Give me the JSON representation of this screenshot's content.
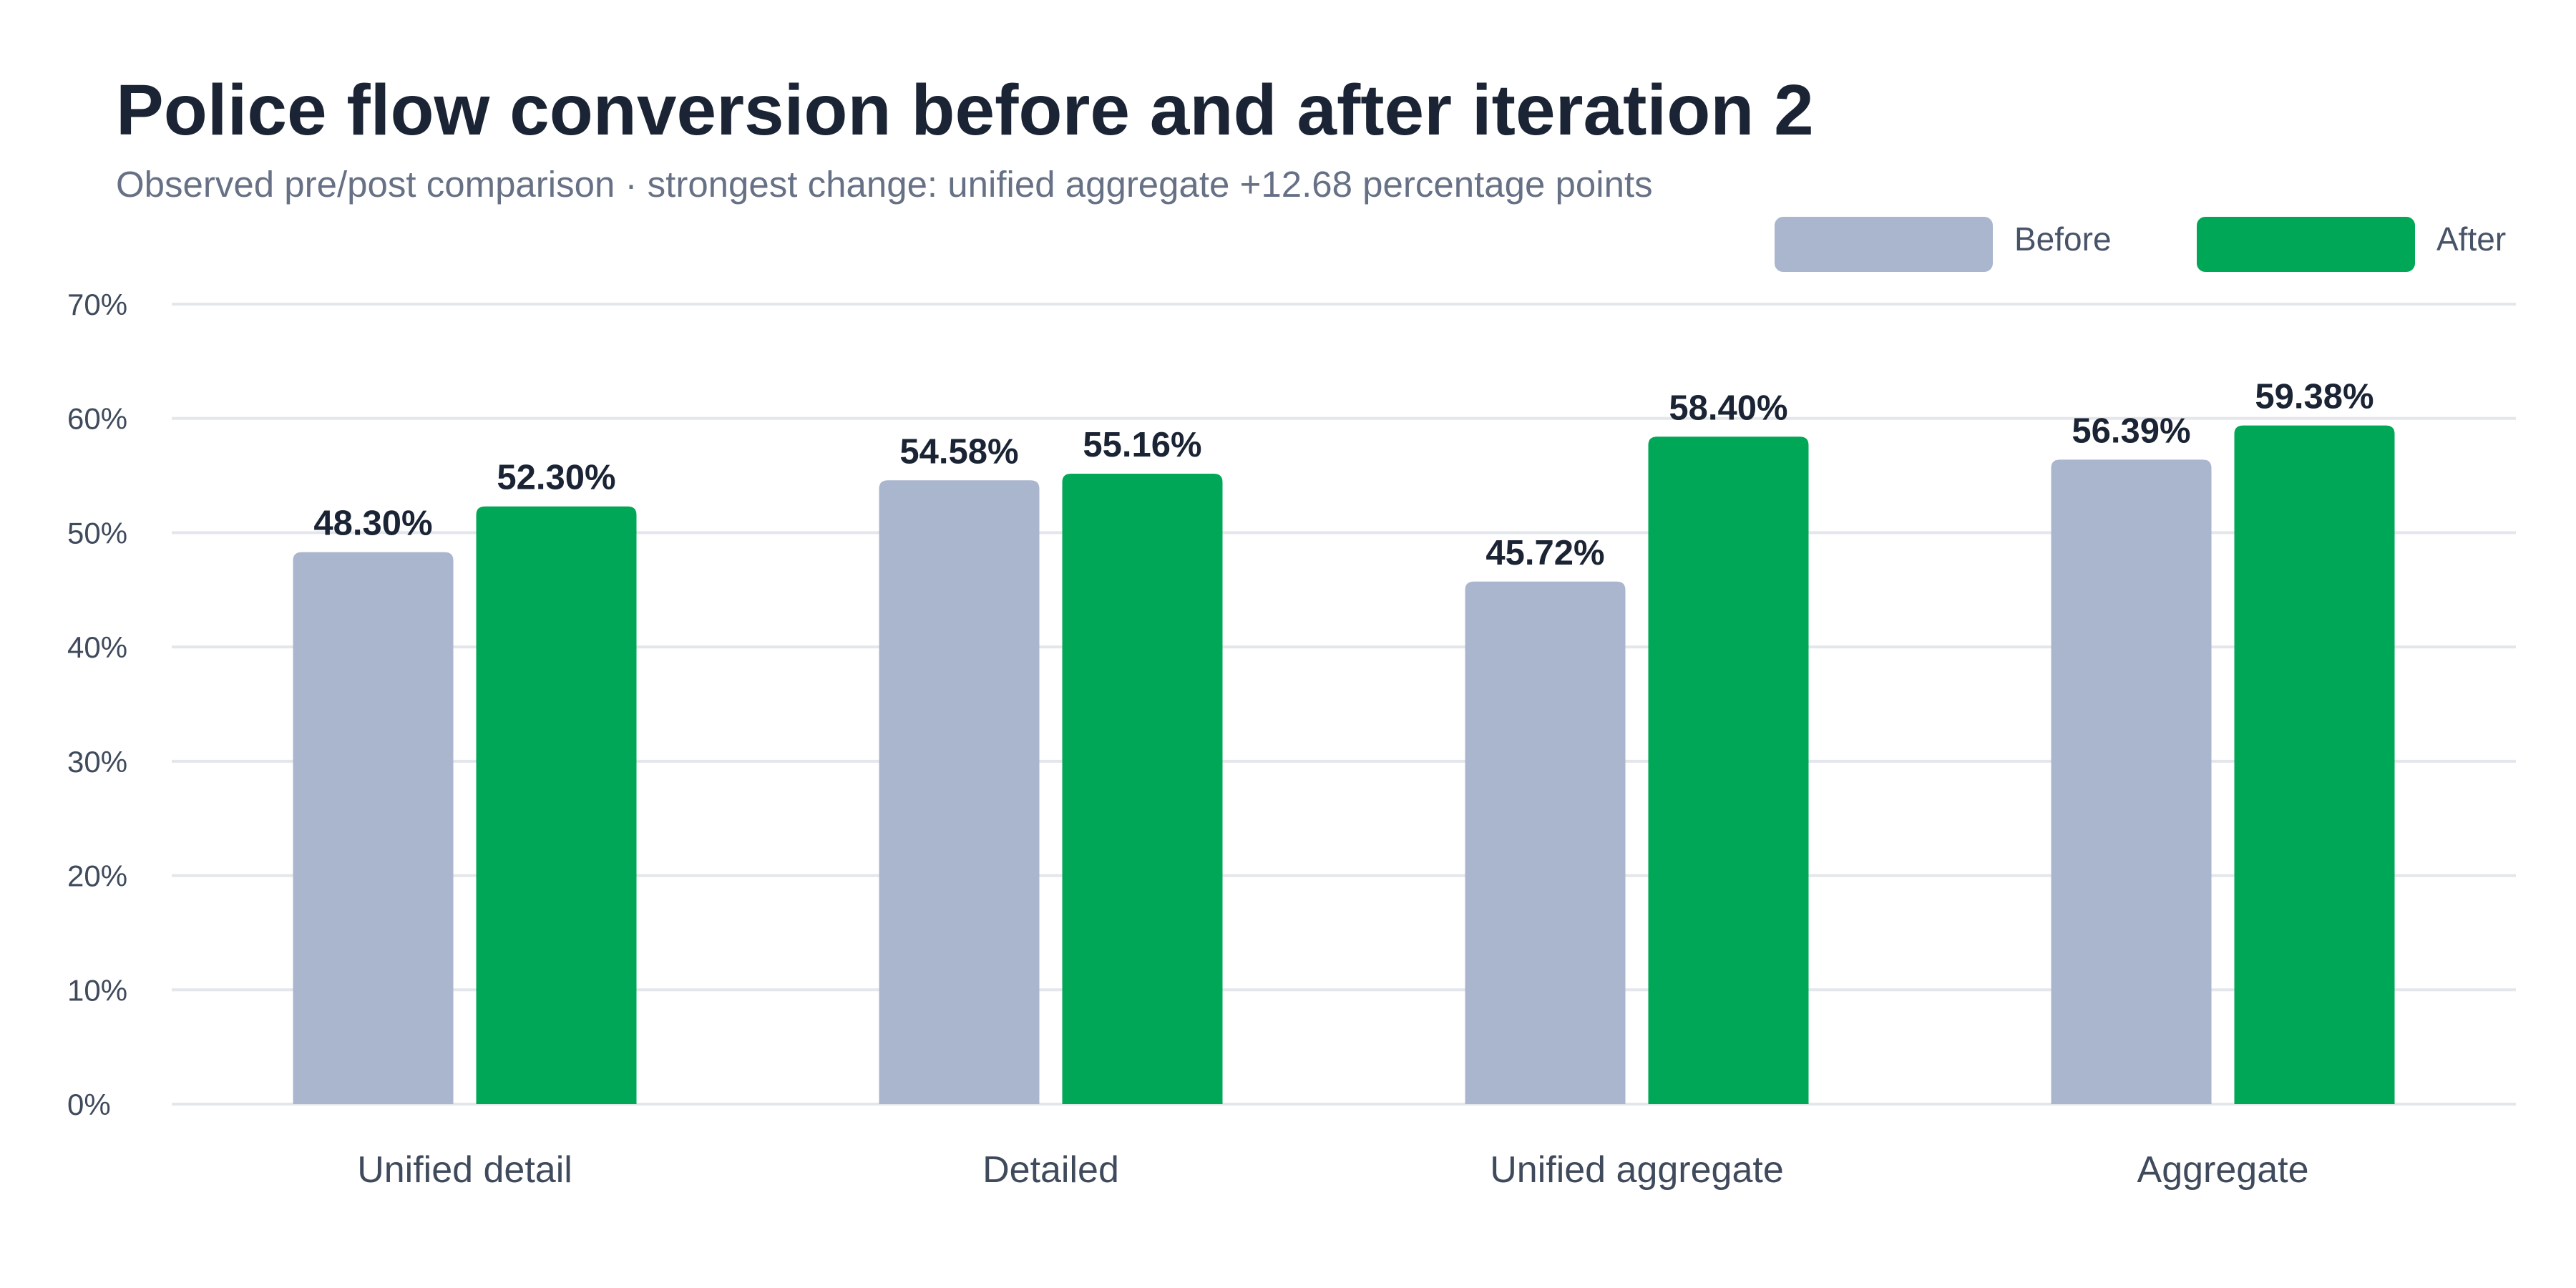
{
  "chart_data": {
    "type": "bar",
    "title": "Police flow conversion before and after iteration 2",
    "subtitle": "Observed pre/post comparison · strongest change: unified aggregate +12.68 percentage points",
    "xlabel": "",
    "ylabel": "",
    "categories": [
      "Unified detail",
      "Detailed",
      "Unified aggregate",
      "Aggregate"
    ],
    "series": [
      {
        "name": "Before",
        "color": "#aab5ce",
        "values": [
          48.3,
          54.58,
          45.72,
          56.39
        ],
        "labels": [
          "48.30%",
          "54.58%",
          "45.72%",
          "56.39%"
        ]
      },
      {
        "name": "After",
        "color": "#00a757",
        "values": [
          52.3,
          55.16,
          58.4,
          59.38
        ],
        "labels": [
          "52.30%",
          "55.16%",
          "58.40%",
          "59.38%"
        ]
      }
    ],
    "ylim": [
      0,
      70
    ],
    "y_ticks": [
      0,
      10,
      20,
      30,
      40,
      50,
      60,
      70
    ],
    "y_tick_labels": [
      "0%",
      "10%",
      "20%",
      "30%",
      "40%",
      "50%",
      "60%",
      "70%"
    ],
    "grid": true,
    "legend_position": "top-right"
  }
}
